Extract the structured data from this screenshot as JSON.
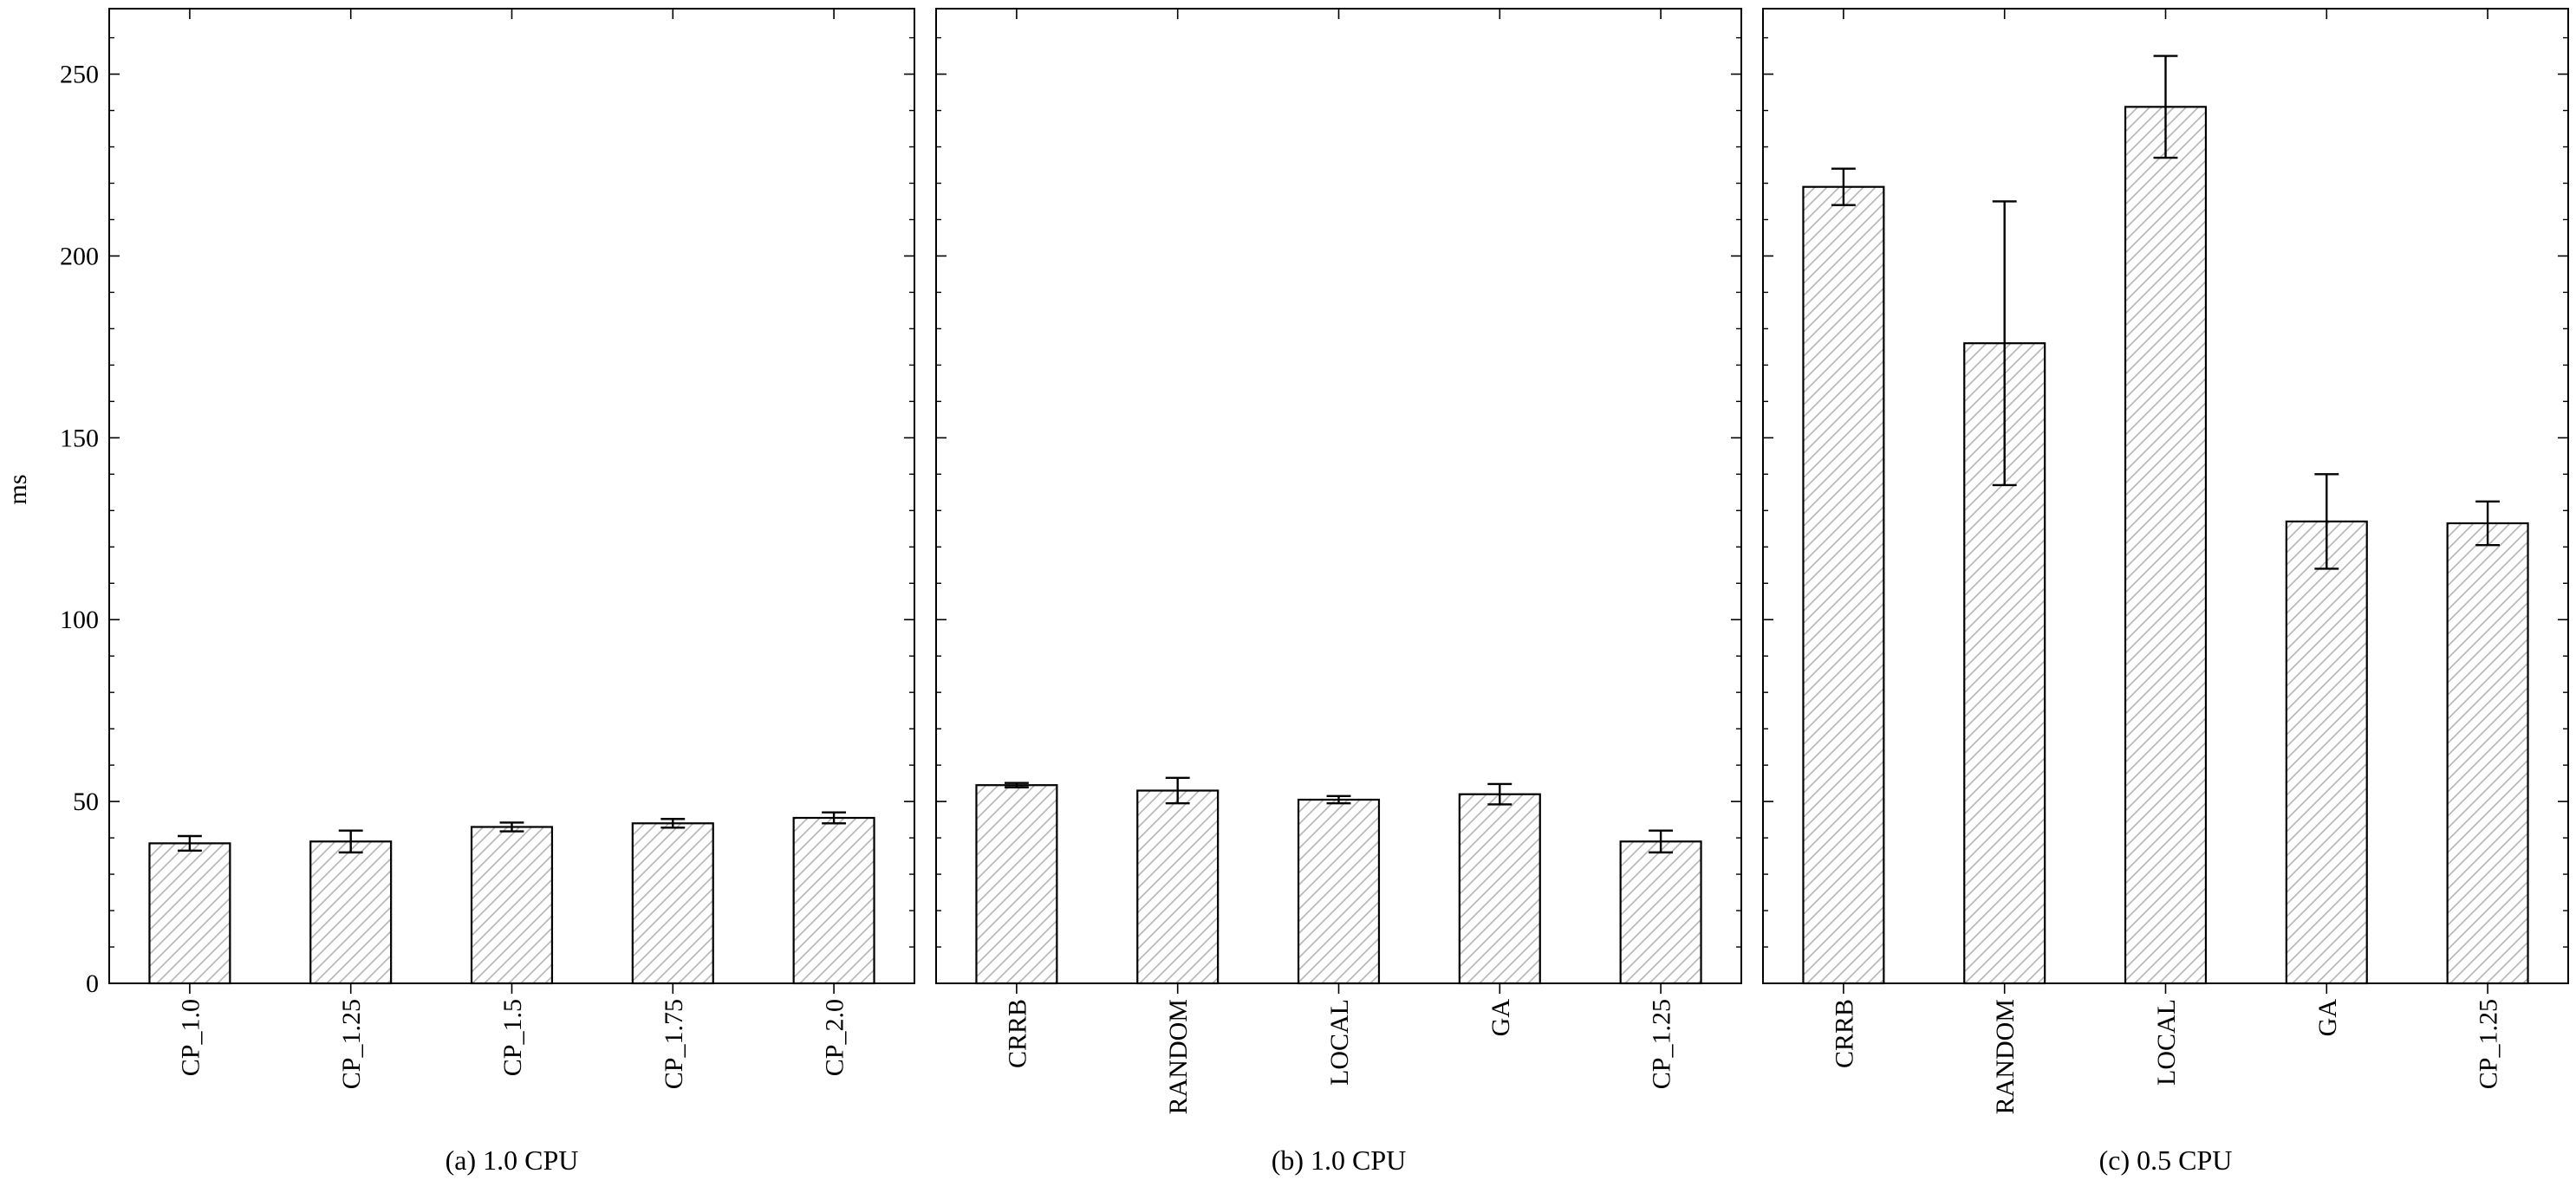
{
  "figure": {
    "ylabel": "ms",
    "yticks": [
      0,
      50,
      100,
      150,
      200,
      250
    ],
    "ylim": [
      0,
      268
    ]
  },
  "colors": {
    "bar_fill": "#ffffff",
    "hatch": "#b4b4b4",
    "edge": "#000000"
  },
  "chart_data": [
    {
      "type": "bar",
      "caption": "(a) 1.0 CPU",
      "ylabel": "ms",
      "ylim": [
        0,
        268
      ],
      "categories": [
        "CP_1.0",
        "CP_1.25",
        "CP_1.5",
        "CP_1.75",
        "CP_2.0"
      ],
      "values": [
        38.5,
        39,
        43,
        44,
        45.5
      ],
      "errors": [
        2,
        3,
        1.2,
        1.2,
        1.5
      ]
    },
    {
      "type": "bar",
      "caption": "(b) 1.0 CPU",
      "ylabel": "",
      "ylim": [
        0,
        268
      ],
      "categories": [
        "CRRB",
        "RANDOM",
        "LOCAL",
        "GA",
        "CP_1.25"
      ],
      "values": [
        54.5,
        53,
        50.5,
        52,
        39
      ],
      "errors": [
        0.6,
        3.5,
        1,
        2.8,
        3
      ]
    },
    {
      "type": "bar",
      "caption": "(c) 0.5 CPU",
      "ylabel": "",
      "ylim": [
        0,
        268
      ],
      "categories": [
        "CRRB",
        "RANDOM",
        "LOCAL",
        "GA",
        "CP_1.25"
      ],
      "values": [
        219,
        176,
        241,
        127,
        126.5
      ],
      "errors": [
        5,
        39,
        14,
        13,
        6
      ]
    }
  ]
}
